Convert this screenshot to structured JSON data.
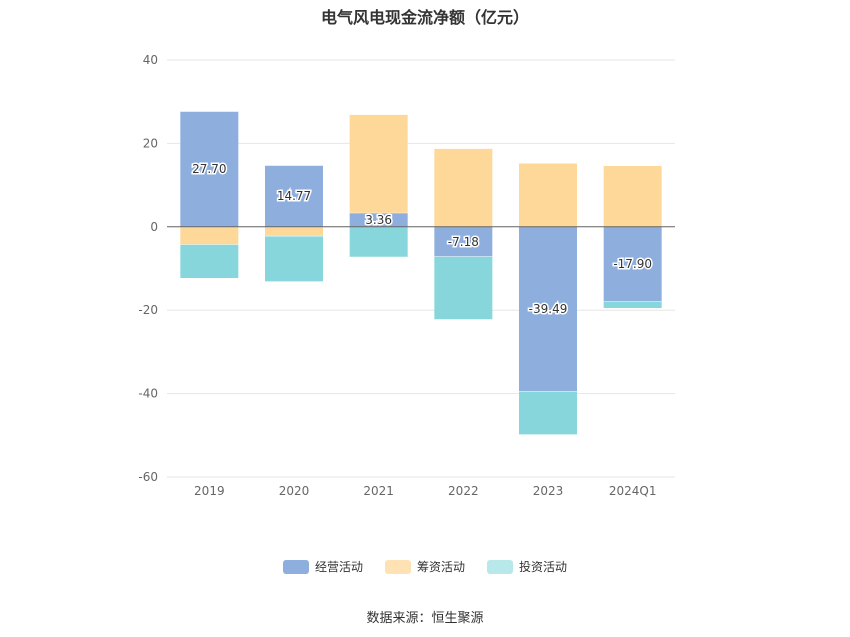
{
  "chart_data": {
    "type": "bar",
    "stacked": true,
    "title": "电气风电现金流净额（亿元）",
    "categories": [
      "2019",
      "2020",
      "2021",
      "2022",
      "2023",
      "2024Q1"
    ],
    "ylim": [
      -60,
      40
    ],
    "yticks": [
      40,
      20,
      0,
      -20,
      -40,
      -60
    ],
    "grid": true,
    "legend_position": "bottom",
    "series": [
      {
        "name": "经营活动",
        "color": "#8eaedd",
        "values": [
          27.7,
          14.77,
          3.36,
          -7.18,
          -39.49,
          -17.9
        ],
        "labels": [
          "27.70",
          "14.77",
          "3.36",
          "-7.18",
          "-39.49",
          "-17.90"
        ]
      },
      {
        "name": "筹资活动",
        "color": "#fed899",
        "values": [
          -4.3,
          -2.3,
          23.6,
          18.8,
          15.3,
          14.7
        ]
      },
      {
        "name": "投资活动",
        "color": "#87d6dc",
        "values": [
          -8.1,
          -10.9,
          -7.3,
          -15.1,
          -10.4,
          -1.7
        ]
      }
    ]
  },
  "source": "数据来源：恒生聚源"
}
